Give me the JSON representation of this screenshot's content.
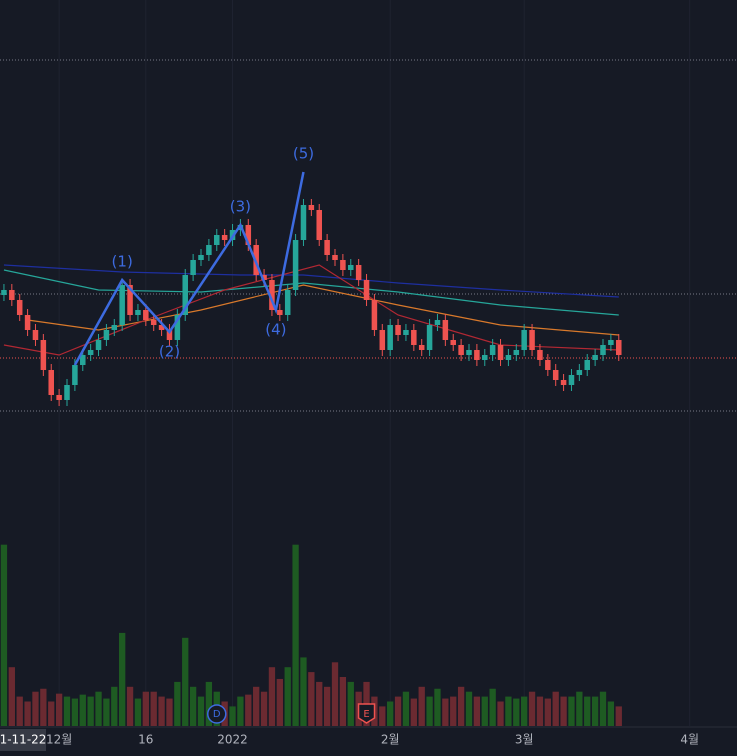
{
  "chart_data": {
    "type": "candlestick",
    "xlim": [
      -0.5,
      93
    ],
    "xticks": [
      {
        "value": 7,
        "label": "12월"
      },
      {
        "value": 18,
        "label": "16"
      },
      {
        "value": 29,
        "label": "2022"
      },
      {
        "value": 49,
        "label": "2월"
      },
      {
        "value": 66,
        "label": "3월"
      },
      {
        "value": 87,
        "label": "4월"
      }
    ],
    "crosshair_label": "1-11-22",
    "ylim": [
      0,
      440
    ],
    "volume_ylim": [
      0,
      200
    ],
    "up_color": "#26a69a",
    "down_color": "#ef5350",
    "volume_up_color": "#1e5b22",
    "volume_down_color": "#6b2a31",
    "open": [
      145,
      150,
      140,
      125,
      110,
      100,
      70,
      45,
      40,
      55,
      75,
      85,
      90,
      100,
      110,
      115,
      155,
      125,
      130,
      120,
      115,
      110,
      100,
      125,
      165,
      180,
      185,
      195,
      205,
      200,
      210,
      215,
      195,
      165,
      160,
      130,
      125,
      150,
      200,
      235,
      230,
      200,
      185,
      180,
      170,
      175,
      160,
      140,
      110,
      90,
      115,
      105,
      110,
      95,
      90,
      115,
      120,
      100,
      95,
      85,
      90,
      80,
      85,
      95,
      80,
      85,
      90,
      110,
      90,
      80,
      70,
      60,
      55,
      65,
      70,
      80,
      85,
      95,
      100
    ],
    "high": [
      156,
      156,
      146,
      131,
      116,
      106,
      76,
      51,
      61,
      81,
      91,
      96,
      106,
      116,
      121,
      161,
      161,
      136,
      136,
      126,
      121,
      116,
      131,
      171,
      186,
      191,
      201,
      211,
      211,
      216,
      221,
      221,
      201,
      171,
      166,
      136,
      156,
      206,
      241,
      241,
      236,
      206,
      191,
      186,
      181,
      181,
      166,
      146,
      116,
      121,
      121,
      116,
      116,
      101,
      121,
      126,
      126,
      106,
      101,
      96,
      96,
      91,
      101,
      101,
      91,
      96,
      116,
      116,
      96,
      86,
      76,
      66,
      71,
      76,
      86,
      91,
      101,
      106,
      106
    ],
    "low": [
      139,
      134,
      119,
      104,
      94,
      64,
      39,
      34,
      34,
      49,
      69,
      79,
      84,
      94,
      104,
      109,
      119,
      119,
      114,
      109,
      104,
      94,
      94,
      119,
      159,
      174,
      179,
      189,
      194,
      194,
      204,
      189,
      159,
      154,
      124,
      119,
      119,
      144,
      194,
      224,
      194,
      179,
      174,
      164,
      164,
      154,
      134,
      104,
      84,
      84,
      99,
      99,
      89,
      84,
      84,
      109,
      94,
      89,
      79,
      79,
      74,
      74,
      79,
      74,
      74,
      79,
      84,
      84,
      74,
      64,
      54,
      49,
      49,
      59,
      64,
      74,
      79,
      89,
      79
    ],
    "close": [
      150,
      140,
      125,
      110,
      100,
      70,
      45,
      40,
      55,
      75,
      85,
      90,
      100,
      110,
      115,
      155,
      125,
      130,
      120,
      115,
      110,
      100,
      125,
      165,
      180,
      185,
      195,
      205,
      200,
      210,
      215,
      195,
      165,
      160,
      130,
      125,
      150,
      200,
      235,
      230,
      200,
      185,
      180,
      170,
      175,
      160,
      140,
      110,
      90,
      115,
      105,
      110,
      95,
      90,
      115,
      120,
      100,
      95,
      85,
      90,
      80,
      85,
      95,
      80,
      85,
      90,
      110,
      90,
      80,
      70,
      60,
      55,
      65,
      70,
      80,
      85,
      95,
      100,
      85
    ],
    "volume": [
      185,
      60,
      30,
      25,
      35,
      38,
      25,
      33,
      30,
      28,
      32,
      30,
      35,
      28,
      40,
      95,
      40,
      28,
      35,
      35,
      30,
      28,
      45,
      90,
      40,
      30,
      45,
      35,
      25,
      20,
      30,
      32,
      40,
      35,
      60,
      48,
      60,
      185,
      70,
      55,
      45,
      40,
      65,
      50,
      45,
      35,
      45,
      30,
      20,
      25,
      30,
      35,
      28,
      40,
      30,
      38,
      28,
      30,
      40,
      35,
      30,
      30,
      38,
      25,
      30,
      28,
      30,
      35,
      30,
      28,
      35,
      30,
      30,
      35,
      30,
      30,
      35,
      25,
      20
    ],
    "moving_averages": [
      {
        "color": "#1e2fa0",
        "x": [
          0,
          15,
          30,
          38,
          50,
          63,
          78
        ],
        "values": [
          175,
          168,
          165,
          165,
          157,
          150,
          143
        ]
      },
      {
        "color": "#26a69a",
        "x": [
          0,
          12,
          25,
          38,
          50,
          63,
          78
        ],
        "values": [
          170,
          150,
          148,
          157,
          148,
          135,
          125
        ]
      },
      {
        "color": "#d9792b",
        "x": [
          3,
          12,
          25,
          38,
          50,
          63,
          78
        ],
        "values": [
          120,
          110,
          130,
          155,
          135,
          115,
          105
        ]
      },
      {
        "color": "#b22833",
        "x": [
          0,
          7,
          18,
          28,
          40,
          50,
          63,
          78
        ],
        "values": [
          95,
          85,
          120,
          150,
          175,
          125,
          95,
          90
        ]
      }
    ],
    "hlines": [
      {
        "value": 380,
        "color": "#787b86"
      },
      {
        "value": 146,
        "color": "#787b86"
      },
      {
        "value": 82,
        "color": "#ef5350"
      },
      {
        "value": 29,
        "color": "#787b86"
      }
    ],
    "wave": {
      "color": "#3d6be0",
      "x": [
        9,
        15,
        21,
        30,
        34.5,
        38
      ],
      "values": [
        75,
        160,
        108,
        215,
        130,
        268
      ],
      "labels": [
        "(1)",
        "(2)",
        "(3)",
        "(4)",
        "(5)"
      ]
    },
    "events": [
      {
        "x": 27,
        "label": "D",
        "color": "#3d6be0"
      },
      {
        "x": 46,
        "label": "E",
        "color": "#ef5350"
      }
    ]
  }
}
